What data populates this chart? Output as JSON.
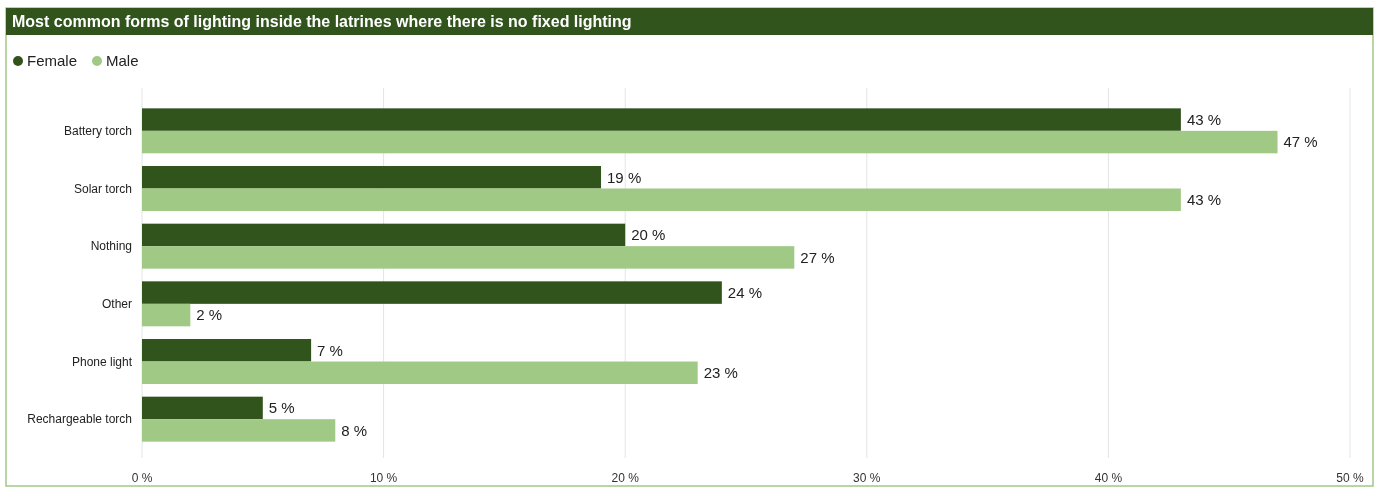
{
  "chart_data": {
    "type": "bar",
    "orientation": "horizontal",
    "title": "Most common forms of lighting inside the latrines where there is no fixed lighting",
    "categories": [
      "Battery torch",
      "Solar torch",
      "Nothing",
      "Other",
      "Phone light",
      "Rechargeable torch"
    ],
    "series": [
      {
        "name": "Female",
        "color": "#31531c",
        "values": [
          43,
          19,
          20,
          24,
          7,
          5
        ],
        "value_labels": [
          "43 %",
          "19 %",
          "20 %",
          "24 %",
          "7 %",
          "5 %"
        ]
      },
      {
        "name": "Male",
        "color": "#a0c986",
        "values": [
          47,
          43,
          27,
          2,
          23,
          8
        ],
        "value_labels": [
          "47 %",
          "43 %",
          "27 %",
          "2 %",
          "23 %",
          "8 %"
        ]
      }
    ],
    "xlim": [
      0,
      50
    ],
    "xticks": [
      {
        "value": 0,
        "label": "0 %"
      },
      {
        "value": 10,
        "label": "10 %"
      },
      {
        "value": 20,
        "label": "20 %"
      },
      {
        "value": 30,
        "label": "30 %"
      },
      {
        "value": 40,
        "label": "40 %"
      },
      {
        "value": 50,
        "label": "50 %"
      }
    ],
    "grid": "x",
    "legend": "top left"
  }
}
